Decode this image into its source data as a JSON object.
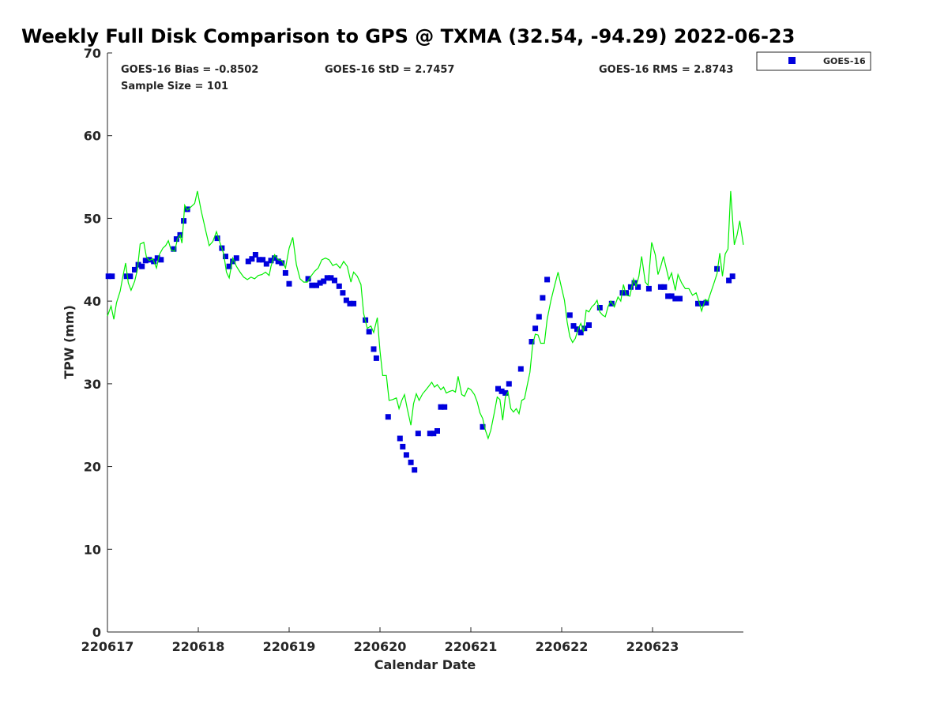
{
  "chart_data": {
    "type": "scatter",
    "title": "Weekly Full Disk Comparison to GPS @ TXMA (32.54, -94.29) 2022-06-23",
    "xlabel": "Calendar Date",
    "ylabel": "TPW (mm)",
    "xlim": [
      0,
      7
    ],
    "ylim": [
      0,
      70
    ],
    "x_ticks": [
      {
        "value": 0,
        "label": "220617"
      },
      {
        "value": 1,
        "label": "220618"
      },
      {
        "value": 2,
        "label": "220619"
      },
      {
        "value": 3,
        "label": "220620"
      },
      {
        "value": 4,
        "label": "220621"
      },
      {
        "value": 5,
        "label": "220622"
      },
      {
        "value": 6,
        "label": "220623"
      }
    ],
    "y_ticks": [
      0,
      10,
      20,
      30,
      40,
      50,
      60,
      70
    ],
    "grid": false,
    "legend_position": "top-right",
    "stats": {
      "bias": "GOES-16 Bias = -0.8502",
      "std": "GOES-16 StD = 2.7457",
      "rms": "GOES-16 RMS = 2.8743",
      "sample": "Sample Size = 101"
    },
    "series": [
      {
        "name": "GOES-16",
        "marker": "square",
        "color": "#0000dd",
        "points": [
          [
            0.01,
            43.0
          ],
          [
            0.05,
            43.0
          ],
          [
            0.21,
            43.0
          ],
          [
            0.25,
            43.0
          ],
          [
            0.3,
            43.8
          ],
          [
            0.34,
            44.4
          ],
          [
            0.38,
            44.2
          ],
          [
            0.42,
            44.9
          ],
          [
            0.46,
            45.0
          ],
          [
            0.51,
            44.8
          ],
          [
            0.55,
            45.2
          ],
          [
            0.59,
            45.0
          ],
          [
            0.73,
            46.3
          ],
          [
            0.76,
            47.5
          ],
          [
            0.8,
            48.0
          ],
          [
            0.84,
            49.7
          ],
          [
            0.88,
            51.1
          ],
          [
            1.21,
            47.6
          ],
          [
            1.26,
            46.4
          ],
          [
            1.3,
            45.4
          ],
          [
            1.34,
            44.2
          ],
          [
            1.38,
            44.8
          ],
          [
            1.42,
            45.2
          ],
          [
            1.55,
            44.8
          ],
          [
            1.59,
            45.1
          ],
          [
            1.63,
            45.6
          ],
          [
            1.67,
            45.0
          ],
          [
            1.71,
            45.0
          ],
          [
            1.75,
            44.5
          ],
          [
            1.8,
            44.9
          ],
          [
            1.84,
            45.2
          ],
          [
            1.88,
            44.8
          ],
          [
            1.92,
            44.6
          ],
          [
            1.96,
            43.4
          ],
          [
            2.0,
            42.1
          ],
          [
            2.21,
            42.7
          ],
          [
            2.25,
            41.9
          ],
          [
            2.3,
            41.9
          ],
          [
            2.34,
            42.2
          ],
          [
            2.38,
            42.4
          ],
          [
            2.42,
            42.8
          ],
          [
            2.46,
            42.8
          ],
          [
            2.5,
            42.5
          ],
          [
            2.55,
            41.8
          ],
          [
            2.59,
            41.0
          ],
          [
            2.63,
            40.1
          ],
          [
            2.67,
            39.7
          ],
          [
            2.71,
            39.7
          ],
          [
            2.84,
            37.7
          ],
          [
            2.88,
            36.3
          ],
          [
            2.93,
            34.2
          ],
          [
            2.96,
            33.1
          ],
          [
            3.09,
            26.0
          ],
          [
            3.22,
            23.4
          ],
          [
            3.25,
            22.4
          ],
          [
            3.29,
            21.4
          ],
          [
            3.34,
            20.5
          ],
          [
            3.38,
            19.6
          ],
          [
            3.42,
            24.0
          ],
          [
            3.55,
            24.0
          ],
          [
            3.59,
            24.0
          ],
          [
            3.63,
            24.3
          ],
          [
            3.67,
            27.2
          ],
          [
            3.71,
            27.2
          ],
          [
            4.13,
            24.8
          ],
          [
            4.3,
            29.4
          ],
          [
            4.34,
            29.1
          ],
          [
            4.38,
            28.9
          ],
          [
            4.42,
            30.0
          ],
          [
            4.55,
            31.8
          ],
          [
            4.67,
            35.1
          ],
          [
            4.71,
            36.7
          ],
          [
            4.75,
            38.1
          ],
          [
            4.79,
            40.4
          ],
          [
            4.84,
            42.6
          ],
          [
            5.09,
            38.3
          ],
          [
            5.13,
            37.0
          ],
          [
            5.17,
            36.6
          ],
          [
            5.21,
            36.2
          ],
          [
            5.25,
            36.7
          ],
          [
            5.3,
            37.1
          ],
          [
            5.42,
            39.2
          ],
          [
            5.55,
            39.7
          ],
          [
            5.67,
            41.0
          ],
          [
            5.71,
            41.0
          ],
          [
            5.76,
            41.7
          ],
          [
            5.8,
            42.2
          ],
          [
            5.84,
            41.7
          ],
          [
            5.96,
            41.5
          ],
          [
            6.09,
            41.7
          ],
          [
            6.13,
            41.7
          ],
          [
            6.17,
            40.6
          ],
          [
            6.21,
            40.6
          ],
          [
            6.25,
            40.3
          ],
          [
            6.3,
            40.3
          ],
          [
            6.5,
            39.7
          ],
          [
            6.54,
            39.7
          ],
          [
            6.59,
            39.8
          ],
          [
            6.71,
            43.9
          ],
          [
            6.84,
            42.5
          ],
          [
            6.88,
            43.0
          ]
        ]
      },
      {
        "marker": "line",
        "color": "#00ee00",
        "points": [
          [
            0.0,
            38.2
          ],
          [
            0.04,
            39.4
          ],
          [
            0.07,
            37.8
          ],
          [
            0.1,
            39.8
          ],
          [
            0.14,
            41.2
          ],
          [
            0.17,
            43.0
          ],
          [
            0.2,
            44.6
          ],
          [
            0.23,
            42.2
          ],
          [
            0.26,
            41.3
          ],
          [
            0.3,
            42.4
          ],
          [
            0.33,
            43.8
          ],
          [
            0.36,
            46.9
          ],
          [
            0.4,
            47.1
          ],
          [
            0.43,
            45.3
          ],
          [
            0.46,
            44.9
          ],
          [
            0.5,
            45.1
          ],
          [
            0.54,
            44.0
          ],
          [
            0.57,
            45.6
          ],
          [
            0.61,
            46.4
          ],
          [
            0.64,
            46.7
          ],
          [
            0.67,
            47.3
          ],
          [
            0.7,
            46.2
          ],
          [
            0.74,
            46.0
          ],
          [
            0.77,
            47.5
          ],
          [
            0.8,
            48.0
          ],
          [
            0.82,
            47.0
          ],
          [
            0.85,
            51.6
          ],
          [
            0.88,
            51.0
          ],
          [
            0.92,
            51.4
          ],
          [
            0.96,
            51.8
          ],
          [
            0.99,
            53.3
          ],
          [
            1.03,
            51.0
          ],
          [
            1.08,
            48.6
          ],
          [
            1.12,
            46.7
          ],
          [
            1.16,
            47.2
          ],
          [
            1.2,
            48.4
          ],
          [
            1.24,
            47.0
          ],
          [
            1.28,
            45.7
          ],
          [
            1.31,
            43.5
          ],
          [
            1.34,
            42.8
          ],
          [
            1.38,
            45.2
          ],
          [
            1.42,
            44.2
          ],
          [
            1.46,
            43.5
          ],
          [
            1.5,
            42.9
          ],
          [
            1.54,
            42.6
          ],
          [
            1.58,
            42.9
          ],
          [
            1.62,
            42.7
          ],
          [
            1.66,
            43.1
          ],
          [
            1.7,
            43.2
          ],
          [
            1.74,
            43.5
          ],
          [
            1.78,
            43.1
          ],
          [
            1.8,
            44.2
          ],
          [
            1.84,
            45.6
          ],
          [
            1.88,
            45.0
          ],
          [
            1.92,
            44.9
          ],
          [
            1.96,
            44.0
          ],
          [
            2.0,
            46.4
          ],
          [
            2.04,
            47.7
          ],
          [
            2.08,
            44.4
          ],
          [
            2.12,
            42.7
          ],
          [
            2.16,
            42.3
          ],
          [
            2.2,
            42.3
          ],
          [
            2.24,
            43.0
          ],
          [
            2.28,
            43.6
          ],
          [
            2.32,
            44.0
          ],
          [
            2.36,
            45.0
          ],
          [
            2.4,
            45.2
          ],
          [
            2.44,
            45.0
          ],
          [
            2.48,
            44.3
          ],
          [
            2.52,
            44.5
          ],
          [
            2.56,
            44.0
          ],
          [
            2.6,
            44.8
          ],
          [
            2.64,
            44.2
          ],
          [
            2.68,
            42.3
          ],
          [
            2.71,
            43.5
          ],
          [
            2.75,
            43.0
          ],
          [
            2.79,
            42.0
          ],
          [
            2.82,
            38.5
          ],
          [
            2.86,
            36.7
          ],
          [
            2.9,
            37.0
          ],
          [
            2.93,
            36.2
          ],
          [
            2.97,
            38.0
          ],
          [
            3.0,
            34.0
          ],
          [
            3.03,
            31.0
          ],
          [
            3.07,
            31.0
          ],
          [
            3.1,
            28.0
          ],
          [
            3.14,
            28.1
          ],
          [
            3.18,
            28.3
          ],
          [
            3.21,
            27.0
          ],
          [
            3.24,
            28.0
          ],
          [
            3.27,
            28.7
          ],
          [
            3.3,
            27.0
          ],
          [
            3.34,
            25.0
          ],
          [
            3.37,
            27.6
          ],
          [
            3.4,
            28.8
          ],
          [
            3.43,
            28.0
          ],
          [
            3.47,
            28.8
          ],
          [
            3.5,
            29.2
          ],
          [
            3.53,
            29.6
          ],
          [
            3.57,
            30.2
          ],
          [
            3.6,
            29.6
          ],
          [
            3.63,
            29.9
          ],
          [
            3.67,
            29.3
          ],
          [
            3.7,
            29.6
          ],
          [
            3.73,
            28.9
          ],
          [
            3.77,
            29.1
          ],
          [
            3.8,
            29.2
          ],
          [
            3.83,
            29.0
          ],
          [
            3.86,
            30.9
          ],
          [
            3.9,
            28.7
          ],
          [
            3.93,
            28.5
          ],
          [
            3.97,
            29.5
          ],
          [
            4.0,
            29.3
          ],
          [
            4.04,
            28.7
          ],
          [
            4.07,
            27.8
          ],
          [
            4.1,
            26.5
          ],
          [
            4.13,
            25.8
          ],
          [
            4.16,
            24.4
          ],
          [
            4.19,
            23.4
          ],
          [
            4.22,
            24.4
          ],
          [
            4.26,
            26.6
          ],
          [
            4.29,
            28.4
          ],
          [
            4.32,
            28.1
          ],
          [
            4.35,
            25.6
          ],
          [
            4.38,
            28.4
          ],
          [
            4.41,
            29.0
          ],
          [
            4.44,
            27.0
          ],
          [
            4.47,
            26.6
          ],
          [
            4.5,
            27.0
          ],
          [
            4.53,
            26.4
          ],
          [
            4.56,
            28.0
          ],
          [
            4.59,
            28.2
          ],
          [
            4.62,
            29.8
          ],
          [
            4.65,
            31.4
          ],
          [
            4.68,
            34.7
          ],
          [
            4.71,
            36.0
          ],
          [
            4.74,
            35.9
          ],
          [
            4.77,
            34.9
          ],
          [
            4.81,
            34.9
          ],
          [
            4.84,
            37.8
          ],
          [
            4.88,
            40.0
          ],
          [
            4.92,
            41.8
          ],
          [
            4.96,
            43.5
          ],
          [
            4.99,
            42.0
          ],
          [
            5.03,
            40.1
          ],
          [
            5.06,
            37.5
          ],
          [
            5.09,
            35.7
          ],
          [
            5.12,
            35.0
          ],
          [
            5.15,
            35.5
          ],
          [
            5.18,
            36.6
          ],
          [
            5.21,
            37.3
          ],
          [
            5.24,
            36.3
          ],
          [
            5.27,
            38.9
          ],
          [
            5.3,
            38.7
          ],
          [
            5.33,
            39.3
          ],
          [
            5.36,
            39.6
          ],
          [
            5.39,
            40.1
          ],
          [
            5.42,
            38.7
          ],
          [
            5.45,
            38.3
          ],
          [
            5.48,
            38.1
          ],
          [
            5.51,
            39.3
          ],
          [
            5.54,
            40.0
          ],
          [
            5.58,
            39.3
          ],
          [
            5.62,
            40.5
          ],
          [
            5.65,
            40.0
          ],
          [
            5.68,
            42.0
          ],
          [
            5.71,
            40.7
          ],
          [
            5.75,
            40.6
          ],
          [
            5.79,
            42.7
          ],
          [
            5.82,
            41.8
          ],
          [
            5.85,
            43.0
          ],
          [
            5.88,
            45.4
          ],
          [
            5.92,
            42.3
          ],
          [
            5.95,
            41.9
          ],
          [
            5.99,
            47.1
          ],
          [
            6.03,
            45.6
          ],
          [
            6.06,
            43.2
          ],
          [
            6.09,
            44.2
          ],
          [
            6.12,
            45.4
          ],
          [
            6.15,
            44.0
          ],
          [
            6.18,
            42.6
          ],
          [
            6.21,
            43.4
          ],
          [
            6.25,
            41.3
          ],
          [
            6.28,
            43.2
          ],
          [
            6.32,
            42.2
          ],
          [
            6.36,
            41.5
          ],
          [
            6.4,
            41.5
          ],
          [
            6.44,
            40.7
          ],
          [
            6.48,
            41.0
          ],
          [
            6.51,
            40.0
          ],
          [
            6.54,
            38.8
          ],
          [
            6.58,
            40.2
          ],
          [
            6.61,
            40.0
          ],
          [
            6.64,
            41.0
          ],
          [
            6.68,
            42.3
          ],
          [
            6.71,
            43.3
          ],
          [
            6.74,
            45.8
          ],
          [
            6.77,
            43.0
          ],
          [
            6.8,
            45.7
          ],
          [
            6.83,
            46.3
          ],
          [
            6.86,
            53.3
          ],
          [
            6.9,
            46.8
          ],
          [
            6.93,
            48.0
          ],
          [
            6.96,
            49.7
          ],
          [
            7.0,
            46.8
          ]
        ]
      }
    ]
  }
}
